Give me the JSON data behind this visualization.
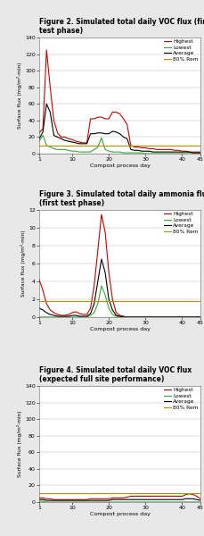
{
  "fig2": {
    "title": "Figure 2. Simulated total daily VOC flux (first\ntest phase)",
    "ylabel": "Surface flux (mg/m²-min)",
    "xlabel": "Compost process day",
    "ylim": [
      0,
      140
    ],
    "yticks": [
      0,
      20,
      40,
      60,
      80,
      100,
      120,
      140
    ],
    "xlim": [
      1,
      45
    ],
    "xticks": [
      1,
      10,
      20,
      30,
      40,
      45
    ],
    "highest": {
      "x": [
        1,
        2,
        3,
        4,
        5,
        6,
        7,
        8,
        9,
        10,
        11,
        12,
        13,
        14,
        15,
        16,
        17,
        18,
        19,
        20,
        21,
        22,
        23,
        24,
        25,
        26,
        27,
        28,
        29,
        30,
        31,
        32,
        33,
        34,
        35,
        36,
        37,
        38,
        39,
        40,
        41,
        42,
        43,
        44,
        45
      ],
      "y": [
        25,
        30,
        125,
        80,
        40,
        25,
        20,
        20,
        18,
        17,
        15,
        14,
        13,
        13,
        42,
        42,
        44,
        44,
        42,
        42,
        50,
        50,
        48,
        42,
        35,
        10,
        8,
        8,
        7,
        7,
        6,
        6,
        5,
        5,
        5,
        5,
        5,
        4,
        4,
        3,
        3,
        2,
        2,
        2,
        2
      ],
      "color": "#cc0000"
    },
    "lowest": {
      "x": [
        1,
        2,
        3,
        4,
        5,
        6,
        7,
        8,
        9,
        10,
        11,
        12,
        13,
        14,
        15,
        16,
        17,
        18,
        19,
        20,
        21,
        22,
        23,
        24,
        25,
        26,
        27,
        28,
        29,
        30,
        31,
        32,
        33,
        34,
        35,
        36,
        37,
        38,
        39,
        40,
        41,
        42,
        43,
        44,
        45
      ],
      "y": [
        15,
        22,
        10,
        8,
        6,
        5,
        5,
        5,
        4,
        3,
        3,
        2,
        2,
        2,
        2,
        5,
        8,
        19,
        5,
        3,
        2,
        2,
        2,
        1,
        1,
        1,
        1,
        1,
        1,
        0,
        0,
        0,
        0,
        0,
        0,
        0,
        0,
        0,
        0,
        0,
        0,
        0,
        0,
        0,
        0
      ],
      "color": "#33aa33"
    },
    "average": {
      "x": [
        1,
        2,
        3,
        4,
        5,
        6,
        7,
        8,
        9,
        10,
        11,
        12,
        13,
        14,
        15,
        16,
        17,
        18,
        19,
        20,
        21,
        22,
        23,
        24,
        25,
        26,
        27,
        28,
        29,
        30,
        31,
        32,
        33,
        34,
        35,
        36,
        37,
        38,
        39,
        40,
        41,
        42,
        43,
        44,
        45
      ],
      "y": [
        18,
        26,
        60,
        50,
        22,
        20,
        18,
        16,
        15,
        14,
        13,
        12,
        12,
        12,
        24,
        24,
        25,
        25,
        24,
        24,
        27,
        26,
        24,
        20,
        18,
        5,
        4,
        4,
        3,
        3,
        3,
        2,
        2,
        2,
        2,
        2,
        2,
        2,
        2,
        2,
        2,
        2,
        1,
        1,
        1
      ],
      "color": "#000000"
    },
    "rem80": {
      "x": [
        1,
        45
      ],
      "y": [
        10,
        10
      ],
      "color": "#cc8800"
    },
    "legend_labels": [
      "Highest",
      "Lowest",
      "Average",
      "80% Rem"
    ]
  },
  "fig3": {
    "title": "Figure 3. Simulated total daily ammonia flux\n(first test phase)",
    "ylabel": "Surface flux (mg/m²-min)",
    "xlabel": "Compost process day",
    "ylim": [
      0,
      12
    ],
    "yticks": [
      0,
      2,
      4,
      6,
      8,
      10,
      12
    ],
    "xlim": [
      1,
      45
    ],
    "xticks": [
      1,
      10,
      20,
      30,
      40,
      45
    ],
    "highest": {
      "x": [
        1,
        2,
        3,
        4,
        5,
        6,
        7,
        8,
        9,
        10,
        11,
        12,
        13,
        14,
        15,
        16,
        17,
        18,
        19,
        20,
        21,
        22,
        23,
        24,
        25,
        26,
        27,
        28,
        29,
        30,
        31,
        32,
        33,
        34,
        35,
        36,
        37,
        38,
        39,
        40,
        41,
        42,
        43,
        44,
        45
      ],
      "y": [
        4.2,
        3.0,
        1.5,
        0.8,
        0.5,
        0.3,
        0.2,
        0.2,
        0.3,
        0.5,
        0.6,
        0.4,
        0.3,
        0.3,
        1.0,
        3.5,
        7.5,
        11.5,
        9.5,
        5.0,
        2.0,
        0.5,
        0.2,
        0.1,
        0.0,
        0.0,
        0.0,
        0.0,
        0.0,
        0.0,
        0.0,
        0.0,
        0.0,
        0.0,
        0.0,
        0.0,
        0.0,
        0.0,
        0.0,
        0.0,
        0.0,
        0.0,
        0.0,
        0.0,
        0.0
      ],
      "color": "#cc0000"
    },
    "lowest": {
      "x": [
        1,
        2,
        3,
        4,
        5,
        6,
        7,
        8,
        9,
        10,
        11,
        12,
        13,
        14,
        15,
        16,
        17,
        18,
        19,
        20,
        21,
        22,
        23,
        24,
        25,
        26,
        27,
        28,
        29,
        30,
        31,
        32,
        33,
        34,
        35,
        36,
        37,
        38,
        39,
        40,
        41,
        42,
        43,
        44,
        45
      ],
      "y": [
        0.0,
        0.0,
        0.0,
        0.0,
        0.0,
        0.0,
        0.0,
        0.0,
        0.0,
        0.0,
        0.0,
        0.0,
        0.0,
        0.0,
        0.2,
        0.5,
        1.5,
        3.5,
        2.5,
        1.0,
        0.3,
        0.1,
        0.0,
        0.0,
        0.0,
        0.0,
        0.0,
        0.0,
        0.0,
        0.0,
        0.0,
        0.0,
        0.0,
        0.0,
        0.0,
        0.0,
        0.0,
        0.0,
        0.0,
        0.0,
        0.0,
        0.0,
        0.0,
        0.0,
        0.0
      ],
      "color": "#33aa33"
    },
    "average": {
      "x": [
        1,
        2,
        3,
        4,
        5,
        6,
        7,
        8,
        9,
        10,
        11,
        12,
        13,
        14,
        15,
        16,
        17,
        18,
        19,
        20,
        21,
        22,
        23,
        24,
        25,
        26,
        27,
        28,
        29,
        30,
        31,
        32,
        33,
        34,
        35,
        36,
        37,
        38,
        39,
        40,
        41,
        42,
        43,
        44,
        45
      ],
      "y": [
        1.0,
        0.8,
        0.5,
        0.3,
        0.2,
        0.1,
        0.1,
        0.1,
        0.1,
        0.2,
        0.2,
        0.1,
        0.1,
        0.1,
        0.4,
        1.5,
        4.0,
        6.5,
        5.0,
        2.0,
        0.8,
        0.2,
        0.1,
        0.0,
        0.0,
        0.0,
        0.0,
        0.0,
        0.0,
        0.0,
        0.0,
        0.0,
        0.0,
        0.0,
        0.0,
        0.0,
        0.0,
        0.0,
        0.0,
        0.0,
        0.0,
        0.0,
        0.0,
        0.0,
        0.0
      ],
      "color": "#000000"
    },
    "rem80": {
      "x": [
        1,
        45
      ],
      "y": [
        1.85,
        1.85
      ],
      "color": "#cc8800"
    },
    "legend_labels": [
      "Highest",
      "Lowest",
      "Average",
      "80% Rem"
    ]
  },
  "fig4": {
    "title": "Figure 4. Simulated total daily VOC flux\n(expected full site performance)",
    "ylabel": "Surface flux (mg/m²-min)",
    "xlabel": "Compost process day",
    "ylim": [
      0,
      140
    ],
    "yticks": [
      0,
      20,
      40,
      60,
      80,
      100,
      120,
      140
    ],
    "xlim": [
      1,
      45
    ],
    "xticks": [
      1,
      10,
      20,
      30,
      40,
      45
    ],
    "highest": {
      "x": [
        1,
        2,
        3,
        4,
        5,
        6,
        7,
        8,
        9,
        10,
        11,
        12,
        13,
        14,
        15,
        16,
        17,
        18,
        19,
        20,
        21,
        22,
        23,
        24,
        25,
        26,
        27,
        28,
        29,
        30,
        31,
        32,
        33,
        34,
        35,
        36,
        37,
        38,
        39,
        40,
        41,
        42,
        43,
        44,
        45
      ],
      "y": [
        5,
        5,
        4,
        4,
        3,
        3,
        3,
        3,
        3,
        3,
        3,
        3,
        3,
        3,
        4,
        4,
        4,
        4,
        4,
        4,
        5,
        5,
        5,
        5,
        6,
        7,
        7,
        7,
        7,
        7,
        7,
        7,
        7,
        7,
        7,
        7,
        7,
        7,
        7,
        7,
        9,
        10,
        9,
        7,
        4
      ],
      "color": "#cc0000"
    },
    "lowest": {
      "x": [
        1,
        2,
        3,
        4,
        5,
        6,
        7,
        8,
        9,
        10,
        11,
        12,
        13,
        14,
        15,
        16,
        17,
        18,
        19,
        20,
        21,
        22,
        23,
        24,
        25,
        26,
        27,
        28,
        29,
        30,
        31,
        32,
        33,
        34,
        35,
        36,
        37,
        38,
        39,
        40,
        41,
        42,
        43,
        44,
        45
      ],
      "y": [
        1,
        1,
        0,
        0,
        0,
        0,
        0,
        0,
        0,
        0,
        0,
        0,
        0,
        0,
        0,
        0,
        0,
        0,
        0,
        0,
        0,
        0,
        0,
        0,
        0,
        0,
        0,
        0,
        0,
        0,
        0,
        0,
        0,
        0,
        0,
        0,
        0,
        0,
        0,
        0,
        0,
        0,
        0,
        0,
        0
      ],
      "color": "#33aa33"
    },
    "average": {
      "x": [
        1,
        2,
        3,
        4,
        5,
        6,
        7,
        8,
        9,
        10,
        11,
        12,
        13,
        14,
        15,
        16,
        17,
        18,
        19,
        20,
        21,
        22,
        23,
        24,
        25,
        26,
        27,
        28,
        29,
        30,
        31,
        32,
        33,
        34,
        35,
        36,
        37,
        38,
        39,
        40,
        41,
        42,
        43,
        44,
        45
      ],
      "y": [
        3,
        3,
        2,
        2,
        2,
        2,
        2,
        2,
        2,
        2,
        2,
        2,
        2,
        2,
        2,
        2,
        2,
        2,
        2,
        2,
        3,
        3,
        3,
        3,
        3,
        3,
        3,
        3,
        3,
        3,
        3,
        3,
        3,
        3,
        3,
        3,
        3,
        3,
        3,
        3,
        4,
        4,
        4,
        3,
        2
      ],
      "color": "#000000"
    },
    "rem80": {
      "x": [
        1,
        45
      ],
      "y": [
        11,
        11
      ],
      "color": "#cc8800"
    },
    "legend_labels": [
      "Highest",
      "Lowest",
      "Average",
      "80% Rem"
    ]
  },
  "bg_color": "#e8e8e8",
  "plot_bg": "#ffffff"
}
